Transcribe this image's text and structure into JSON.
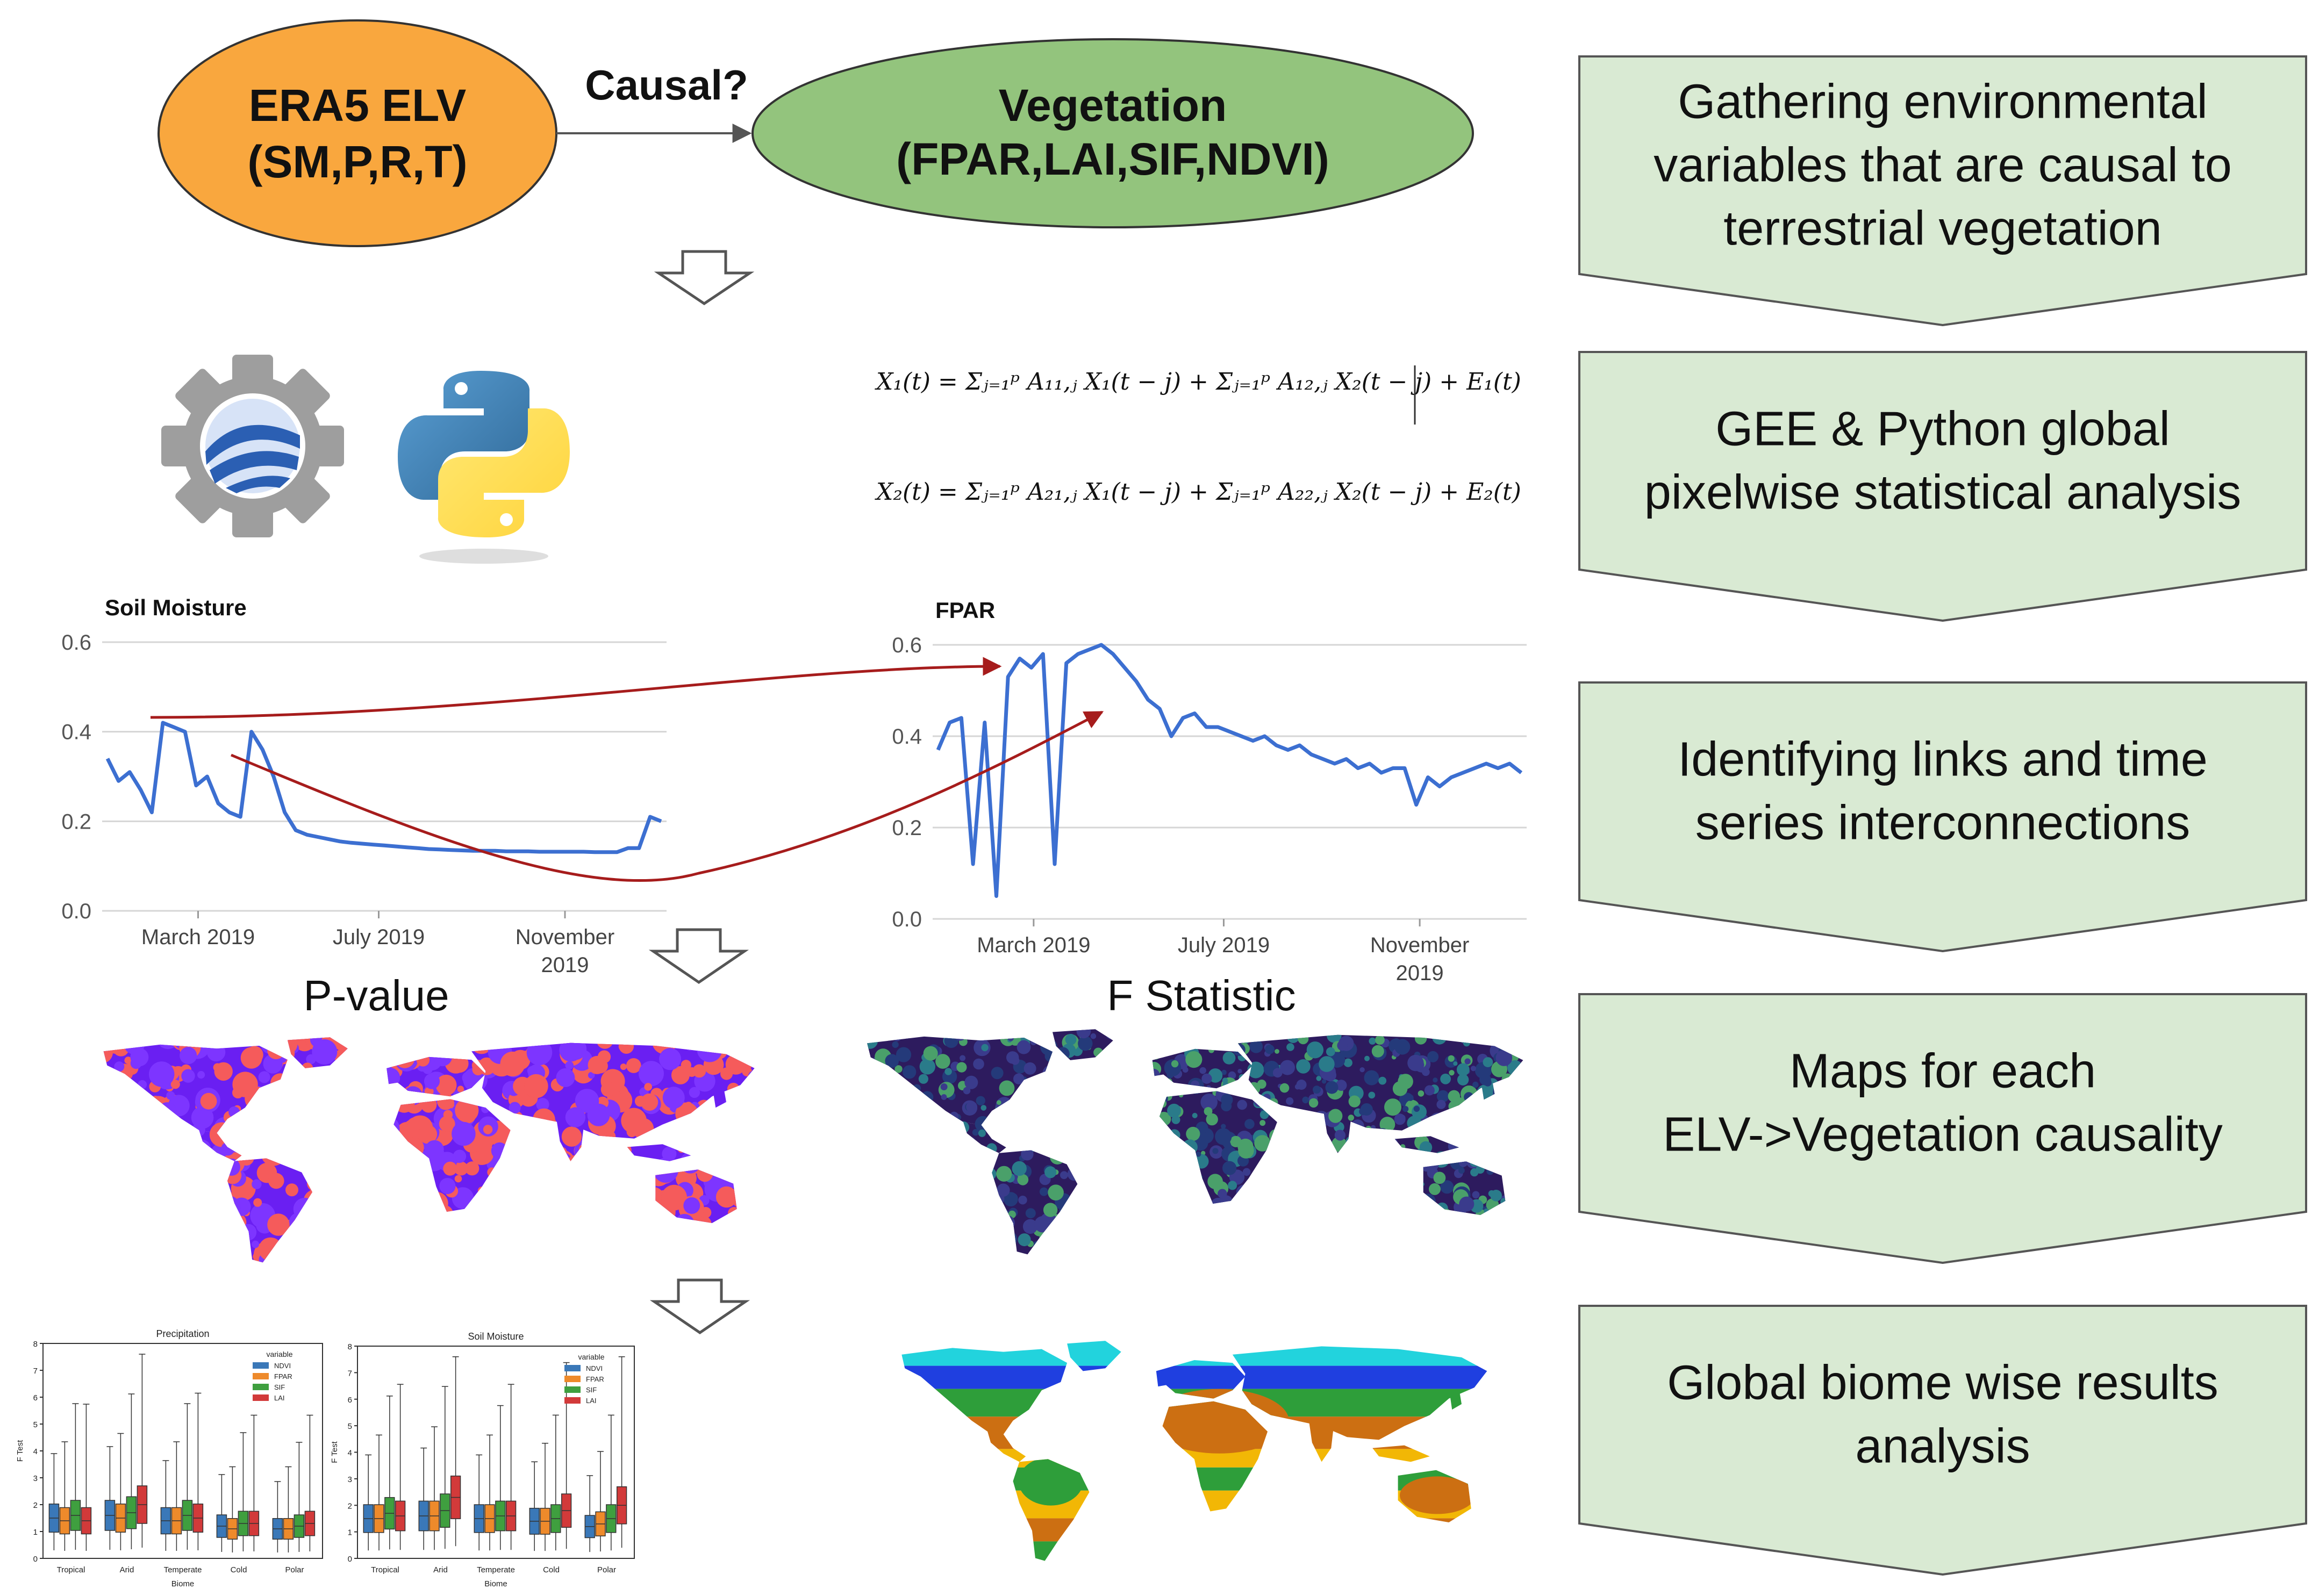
{
  "top": {
    "elv_line1": "ERA5 ELV",
    "elv_line2": "(SM,P,R,T)",
    "causal_label": "Causal?",
    "veg_line1": "Vegetation",
    "veg_line2": "(FPAR,LAI,SIF,NDVI)"
  },
  "equations": {
    "eq1": "X₁(t) = Σⱼ₌₁ᵖ A₁₁,ⱼ X₁(t − j) + Σⱼ₌₁ᵖ A₁₂,ⱼ X₂(t − j) + E₁(t)",
    "eq2": "X₂(t) = Σⱼ₌₁ᵖ A₂₁,ⱼ X₁(t − j) + Σⱼ₌₁ᵖ A₂₂,ⱼ X₂(t − j) + E₂(t)"
  },
  "steps": [
    {
      "lines": [
        "Gathering environmental",
        "variables that are causal to",
        "terrestrial vegetation"
      ]
    },
    {
      "lines": [
        "GEE & Python global",
        "pixelwise statistical analysis"
      ]
    },
    {
      "lines": [
        "Identifying links and time",
        "series interconnections"
      ]
    },
    {
      "lines": [
        "Maps for each",
        "ELV->Vegetation causality"
      ]
    },
    {
      "lines": [
        "Global biome wise results",
        "analysis"
      ]
    }
  ],
  "map_titles": {
    "pvalue": "P-value",
    "fstat": "F Statistic"
  },
  "colors": {
    "elv_fill": "#f9a73e",
    "veg_fill": "#93c47d",
    "step_fill": "#d9ead3",
    "line_blue": "#3c6fd1",
    "link_red": "#a61c1c",
    "pmap_blue": "#6a1ff2",
    "pmap_red": "#f55b5b",
    "fmap_dark": "#2d1b5e",
    "fmap_teal": "#2a7b8a"
  },
  "chart_data": [
    {
      "type": "line",
      "title": "Soil Moisture",
      "xticks": [
        "March 2019",
        "July 2019",
        "November 2019"
      ],
      "yticks": [
        "0.0",
        "0.2",
        "0.4",
        "0.6"
      ],
      "ylim": [
        0,
        0.6
      ],
      "x": [
        0,
        2,
        4,
        6,
        8,
        10,
        12,
        14,
        16,
        18,
        20,
        22,
        24,
        26,
        28,
        30,
        32,
        34,
        36,
        38,
        40,
        42,
        44,
        46,
        48,
        50,
        52,
        54,
        56,
        58,
        60,
        62,
        64,
        66,
        68,
        70,
        72,
        74,
        76,
        78,
        80,
        82,
        84,
        86,
        88,
        90,
        92,
        94,
        96,
        98,
        100
      ],
      "values": [
        0.34,
        0.29,
        0.31,
        0.27,
        0.22,
        0.42,
        0.41,
        0.4,
        0.28,
        0.3,
        0.24,
        0.22,
        0.21,
        0.4,
        0.36,
        0.3,
        0.22,
        0.18,
        0.17,
        0.165,
        0.16,
        0.155,
        0.152,
        0.15,
        0.148,
        0.146,
        0.144,
        0.142,
        0.14,
        0.138,
        0.137,
        0.136,
        0.135,
        0.134,
        0.134,
        0.134,
        0.133,
        0.133,
        0.133,
        0.132,
        0.132,
        0.132,
        0.132,
        0.132,
        0.131,
        0.131,
        0.131,
        0.14,
        0.14,
        0.21,
        0.2
      ]
    },
    {
      "type": "line",
      "title": "FPAR",
      "xticks": [
        "March 2019",
        "July 2019",
        "November 2019"
      ],
      "yticks": [
        "0.0",
        "0.2",
        "0.4",
        "0.6"
      ],
      "ylim": [
        0,
        0.6
      ],
      "x": [
        0,
        2,
        4,
        6,
        8,
        10,
        12,
        14,
        16,
        18,
        20,
        22,
        24,
        26,
        28,
        30,
        32,
        34,
        36,
        38,
        40,
        42,
        44,
        46,
        48,
        50,
        52,
        54,
        56,
        58,
        60,
        62,
        64,
        66,
        68,
        70,
        72,
        74,
        76,
        78,
        80,
        82,
        84,
        86,
        88,
        90,
        92,
        94,
        96,
        98,
        100
      ],
      "values": [
        0.37,
        0.43,
        0.44,
        0.12,
        0.43,
        0.05,
        0.53,
        0.57,
        0.55,
        0.58,
        0.12,
        0.56,
        0.58,
        0.59,
        0.6,
        0.58,
        0.55,
        0.52,
        0.48,
        0.46,
        0.4,
        0.44,
        0.45,
        0.42,
        0.42,
        0.41,
        0.4,
        0.39,
        0.4,
        0.38,
        0.37,
        0.38,
        0.36,
        0.35,
        0.34,
        0.35,
        0.33,
        0.34,
        0.32,
        0.33,
        0.33,
        0.25,
        0.31,
        0.29,
        0.31,
        0.32,
        0.33,
        0.34,
        0.33,
        0.34,
        0.32
      ]
    },
    {
      "type": "box",
      "title": "Precipitation",
      "xlabel": "Biome",
      "ylabel": "F Test",
      "legend_title": "variable",
      "legend": [
        "NDVI",
        "FPAR",
        "SIF",
        "LAI"
      ],
      "categories": [
        "Tropical",
        "Arid",
        "Temperate",
        "Cold",
        "Polar"
      ],
      "medians": [
        [
          1.5,
          1.4,
          1.6,
          1.4
        ],
        [
          1.6,
          1.5,
          1.7,
          2.0
        ],
        [
          1.4,
          1.4,
          1.6,
          1.5
        ],
        [
          1.2,
          1.1,
          1.3,
          1.3
        ],
        [
          1.1,
          1.1,
          1.2,
          1.3
        ]
      ],
      "yticks": [
        "0",
        "1",
        "2",
        "3",
        "4",
        "5",
        "6",
        "7",
        "8"
      ]
    },
    {
      "type": "box",
      "title": "Soil Moisture",
      "xlabel": "Biome",
      "ylabel": "F Test",
      "legend_title": "variable",
      "legend": [
        "NDVI",
        "FPAR",
        "SIF",
        "LAI"
      ],
      "categories": [
        "Tropical",
        "Arid",
        "Temperate",
        "Cold",
        "Polar"
      ],
      "medians": [
        [
          1.5,
          1.5,
          1.7,
          1.6
        ],
        [
          1.6,
          1.6,
          1.8,
          2.3
        ],
        [
          1.5,
          1.5,
          1.6,
          1.6
        ],
        [
          1.4,
          1.4,
          1.5,
          1.8
        ],
        [
          1.2,
          1.3,
          1.5,
          2.0
        ]
      ],
      "yticks": [
        "0",
        "1",
        "2",
        "3",
        "4",
        "5",
        "6",
        "7",
        "8"
      ]
    }
  ]
}
